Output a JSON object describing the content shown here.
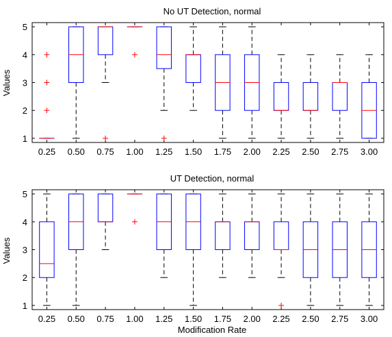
{
  "chart_data": [
    {
      "type": "box",
      "title": "No UT Detection, normal",
      "xlabel": "",
      "ylabel": "Values",
      "categories": [
        "0.25",
        "0.50",
        "0.75",
        "1.00",
        "1.25",
        "1.50",
        "1.75",
        "2.00",
        "2.25",
        "2.50",
        "2.75",
        "3.00"
      ],
      "yticks": [
        1,
        2,
        3,
        4,
        5
      ],
      "ylim": [
        0.85,
        5.15
      ],
      "grid": false,
      "colors": {
        "box": "#0000ff",
        "median": "#ff0000",
        "whisker": "#000000",
        "outlier": "#ff0000"
      },
      "boxes": [
        {
          "q1": 1,
          "median": 1,
          "q3": 1,
          "whisker_low": 1,
          "whisker_high": 1,
          "outliers": [
            2,
            3,
            4
          ]
        },
        {
          "q1": 3,
          "median": 4,
          "q3": 5,
          "whisker_low": 1,
          "whisker_high": 5,
          "outliers": []
        },
        {
          "q1": 4,
          "median": 5,
          "q3": 5,
          "whisker_low": 3,
          "whisker_high": 5,
          "outliers": [
            1
          ]
        },
        {
          "q1": 5,
          "median": 5,
          "q3": 5,
          "whisker_low": 5,
          "whisker_high": 5,
          "outliers": [
            4
          ]
        },
        {
          "q1": 3.5,
          "median": 4,
          "q3": 5,
          "whisker_low": 2,
          "whisker_high": 5,
          "outliers": [
            1
          ]
        },
        {
          "q1": 3,
          "median": 4,
          "q3": 4,
          "whisker_low": 2,
          "whisker_high": 5,
          "outliers": []
        },
        {
          "q1": 2,
          "median": 3,
          "q3": 4,
          "whisker_low": 1,
          "whisker_high": 5,
          "outliers": []
        },
        {
          "q1": 2,
          "median": 3,
          "q3": 4,
          "whisker_low": 1,
          "whisker_high": 5,
          "outliers": []
        },
        {
          "q1": 2,
          "median": 2,
          "q3": 3,
          "whisker_low": 1,
          "whisker_high": 4,
          "outliers": []
        },
        {
          "q1": 2,
          "median": 2,
          "q3": 3,
          "whisker_low": 1,
          "whisker_high": 4,
          "outliers": []
        },
        {
          "q1": 2,
          "median": 3,
          "q3": 3,
          "whisker_low": 1,
          "whisker_high": 4,
          "outliers": []
        },
        {
          "q1": 1,
          "median": 2,
          "q3": 3,
          "whisker_low": 1,
          "whisker_high": 4,
          "outliers": []
        }
      ]
    },
    {
      "type": "box",
      "title": "UT Detection, normal",
      "xlabel": "Modification Rate",
      "ylabel": "Values",
      "categories": [
        "0.25",
        "0.50",
        "0.75",
        "1.00",
        "1.25",
        "1.50",
        "1.75",
        "2.00",
        "2.25",
        "2.50",
        "2.75",
        "3.00"
      ],
      "yticks": [
        1,
        2,
        3,
        4,
        5
      ],
      "ylim": [
        0.85,
        5.15
      ],
      "grid": false,
      "colors": {
        "box": "#0000ff",
        "median": "#ff0000",
        "whisker": "#000000",
        "outlier": "#ff0000"
      },
      "boxes": [
        {
          "q1": 2,
          "median": 2.5,
          "q3": 4,
          "whisker_low": 1,
          "whisker_high": 5,
          "outliers": []
        },
        {
          "q1": 3,
          "median": 4,
          "q3": 5,
          "whisker_low": 1,
          "whisker_high": 5,
          "outliers": []
        },
        {
          "q1": 4,
          "median": 4,
          "q3": 5,
          "whisker_low": 3,
          "whisker_high": 5,
          "outliers": []
        },
        {
          "q1": 5,
          "median": 5,
          "q3": 5,
          "whisker_low": 5,
          "whisker_high": 5,
          "outliers": [
            4
          ]
        },
        {
          "q1": 3,
          "median": 4,
          "q3": 5,
          "whisker_low": 2,
          "whisker_high": 5,
          "outliers": []
        },
        {
          "q1": 3,
          "median": 4,
          "q3": 5,
          "whisker_low": 1,
          "whisker_high": 5,
          "outliers": []
        },
        {
          "q1": 3,
          "median": 4,
          "q3": 4,
          "whisker_low": 2,
          "whisker_high": 5,
          "outliers": []
        },
        {
          "q1": 3,
          "median": 4,
          "q3": 4,
          "whisker_low": 2,
          "whisker_high": 5,
          "outliers": []
        },
        {
          "q1": 3,
          "median": 3,
          "q3": 4,
          "whisker_low": 2,
          "whisker_high": 5,
          "outliers": [
            1
          ]
        },
        {
          "q1": 2,
          "median": 3,
          "q3": 4,
          "whisker_low": 1,
          "whisker_high": 5,
          "outliers": []
        },
        {
          "q1": 2,
          "median": 3,
          "q3": 4,
          "whisker_low": 1,
          "whisker_high": 5,
          "outliers": []
        },
        {
          "q1": 2,
          "median": 3,
          "q3": 4,
          "whisker_low": 1,
          "whisker_high": 5,
          "outliers": []
        }
      ]
    }
  ]
}
